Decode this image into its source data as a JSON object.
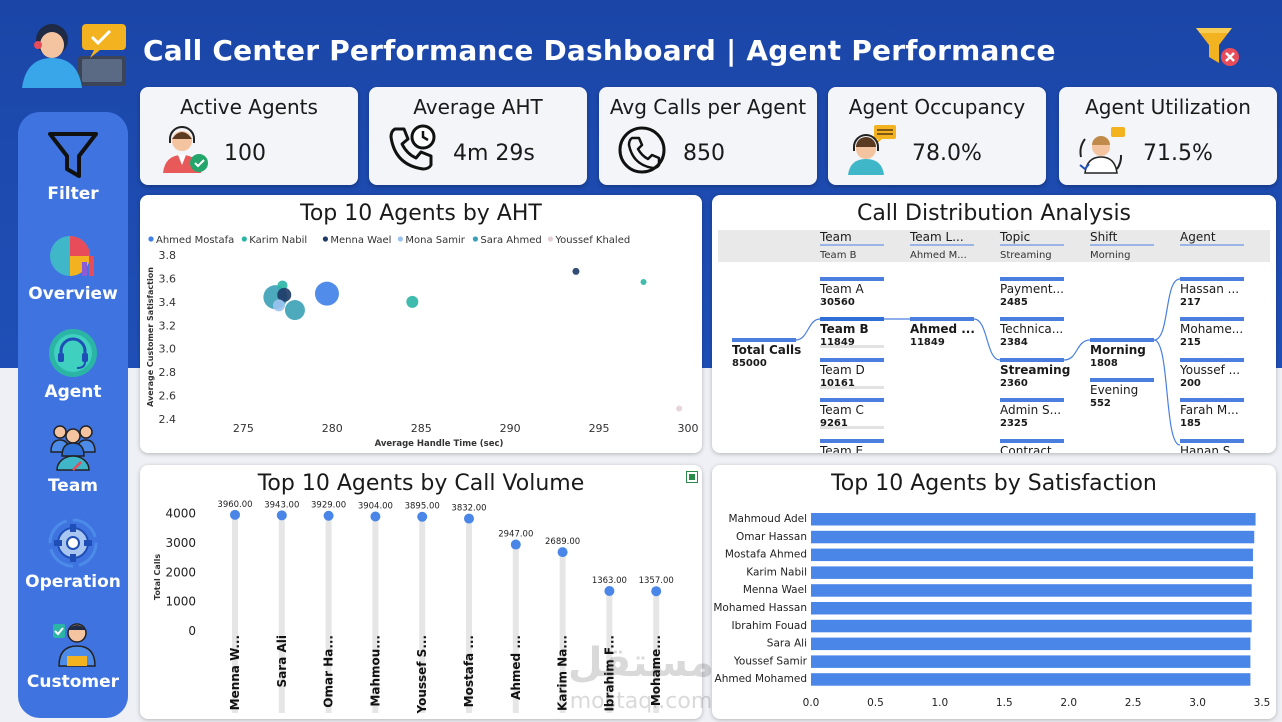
{
  "header": {
    "title": "Call Center Performance Dashboard | Agent Performance"
  },
  "sidebar": {
    "items": [
      {
        "label": "Filter",
        "icon": "funnel-icon"
      },
      {
        "label": "Overview",
        "icon": "pie-chart-icon"
      },
      {
        "label": "Agent",
        "icon": "headset-icon"
      },
      {
        "label": "Team",
        "icon": "team-icon"
      },
      {
        "label": "Operation",
        "icon": "gear-icon"
      },
      {
        "label": "Customer",
        "icon": "customer-icon"
      }
    ]
  },
  "kpis": [
    {
      "title": "Active Agents",
      "value": "100",
      "icon": "agent-check-icon"
    },
    {
      "title": "Average AHT",
      "value": "4m 29s",
      "icon": "phone-clock-icon"
    },
    {
      "title": "Avg Calls per Agent",
      "value": "850",
      "icon": "phone-icon"
    },
    {
      "title": "Agent Occupancy",
      "value": "78.0%",
      "icon": "agent-qa-icon"
    },
    {
      "title": "Agent Utilization",
      "value": "71.5%",
      "icon": "agent-chat-icon"
    }
  ],
  "scatter": {
    "title": "Top 10 Agents by AHT",
    "legend": [
      "Ahmed Mostafa",
      "Karim Nabil",
      "Menna Wael",
      "Mona Samir",
      "Sara Ahmed",
      "Youssef Khaled"
    ],
    "legend_colors": [
      "#3f7fe8",
      "#2ab5a5",
      "#1e3a66",
      "#9cc3ef",
      "#3aa0b5",
      "#e3d0d6"
    ]
  },
  "distribution": {
    "title": "Call Distribution Analysis",
    "headers": [
      {
        "field": "Team",
        "value": "Team B"
      },
      {
        "field": "Team L...",
        "value": "Ahmed M..."
      },
      {
        "field": "Topic",
        "value": "Streaming"
      },
      {
        "field": "Shift",
        "value": "Morning"
      },
      {
        "field": "Agent",
        "value": ""
      }
    ],
    "root": {
      "label": "Total Calls",
      "value": "85000"
    },
    "teams": [
      {
        "label": "Team A",
        "value": "30560"
      },
      {
        "label": "Team B",
        "value": "11849"
      },
      {
        "label": "Team D",
        "value": "10161"
      },
      {
        "label": "Team C",
        "value": "9261"
      },
      {
        "label": "Team E",
        "value": ""
      }
    ],
    "leads": [
      {
        "label": "Ahmed ...",
        "value": "11849"
      }
    ],
    "topics": [
      {
        "label": "Payment...",
        "value": "2485"
      },
      {
        "label": "Technica...",
        "value": "2384"
      },
      {
        "label": "Streaming",
        "value": "2360"
      },
      {
        "label": "Admin S...",
        "value": "2325"
      },
      {
        "label": "Contract",
        "value": ""
      }
    ],
    "shifts": [
      {
        "label": "Morning",
        "value": "1808"
      },
      {
        "label": "Evening",
        "value": "552"
      }
    ],
    "agents": [
      {
        "label": "Hassan ...",
        "value": "217"
      },
      {
        "label": "Mohame...",
        "value": "215"
      },
      {
        "label": "Youssef ...",
        "value": "200"
      },
      {
        "label": "Farah M...",
        "value": "185"
      },
      {
        "label": "Hanan S...",
        "value": ""
      }
    ]
  },
  "volume": {
    "title": "Top 10 Agents by Call Volume"
  },
  "satisfaction": {
    "title": "Top 10 Agents by Satisfaction"
  },
  "watermark": {
    "text": "مستقل",
    "subtext": "mostaql.com"
  },
  "chart_data": [
    {
      "type": "scatter",
      "title": "Top 10 Agents by AHT",
      "xlabel": "Average Handle Time (sec)",
      "ylabel": "Average Customer Satisfaction",
      "xlim": [
        272,
        300
      ],
      "ylim": [
        2.4,
        3.8
      ],
      "xticks": [
        "275",
        "280",
        "285",
        "290",
        "295",
        "300"
      ],
      "yticks": [
        "2.4",
        "2.6",
        "2.8",
        "3.0",
        "3.2",
        "3.4",
        "3.6",
        "3.8"
      ],
      "legend_position": "top-left",
      "points": [
        {
          "x": 276.8,
          "y": 3.44,
          "size": 12,
          "color": "#3aa0b5"
        },
        {
          "x": 277.2,
          "y": 3.54,
          "size": 5,
          "color": "#2ab5a5"
        },
        {
          "x": 277.3,
          "y": 3.46,
          "size": 7,
          "color": "#1e3a66"
        },
        {
          "x": 277.0,
          "y": 3.37,
          "size": 6,
          "color": "#9cc3ef"
        },
        {
          "x": 277.9,
          "y": 3.33,
          "size": 10,
          "color": "#3aa0b5"
        },
        {
          "x": 279.7,
          "y": 3.47,
          "size": 12,
          "color": "#3f7fe8"
        },
        {
          "x": 284.5,
          "y": 3.4,
          "size": 6,
          "color": "#2ab5a5"
        },
        {
          "x": 293.7,
          "y": 3.66,
          "size": 3.5,
          "color": "#1e3a66"
        },
        {
          "x": 297.5,
          "y": 3.57,
          "size": 3,
          "color": "#2ab5a5"
        },
        {
          "x": 299.5,
          "y": 2.49,
          "size": 3,
          "color": "#e3d0d6"
        }
      ]
    },
    {
      "type": "bar",
      "title": "Top 10 Agents by Call Volume",
      "xlabel": "",
      "ylabel": "Total Calls",
      "ylim": [
        0,
        4500
      ],
      "yticks": [
        "0",
        "1000",
        "2000",
        "3000",
        "4000"
      ],
      "categories": [
        "Menna W...",
        "Sara Ali",
        "Omar Ha...",
        "Mahmou...",
        "Youssef S...",
        "Mostafa ...",
        "Ahmed ...",
        "Karim Na...",
        "Ibrahim F...",
        "Mohame..."
      ],
      "values": [
        3960,
        3943,
        3929,
        3904,
        3895,
        3832,
        2947,
        2689,
        1363,
        1357
      ],
      "value_labels": [
        "3960.00",
        "3943.00",
        "3929.00",
        "3904.00",
        "3895.00",
        "3832.00",
        "2947.00",
        "2689.00",
        "1363.00",
        "1357.00"
      ]
    },
    {
      "type": "bar",
      "orientation": "horizontal",
      "title": "Top 10 Agents by Satisfaction",
      "xlim": [
        0,
        3.5
      ],
      "xticks": [
        "0.0",
        "0.5",
        "1.0",
        "1.5",
        "2.0",
        "2.5",
        "3.0",
        "3.5"
      ],
      "categories": [
        "Mahmoud Adel",
        "Omar Hassan",
        "Mostafa Ahmed",
        "Karim Nabil",
        "Menna Wael",
        "Mohamed Hassan",
        "Ibrahim Fouad",
        "Sara Ali",
        "Youssef Samir",
        "Ahmed Mohamed"
      ],
      "values": [
        3.45,
        3.44,
        3.43,
        3.43,
        3.42,
        3.42,
        3.42,
        3.41,
        3.41,
        3.41
      ]
    }
  ]
}
